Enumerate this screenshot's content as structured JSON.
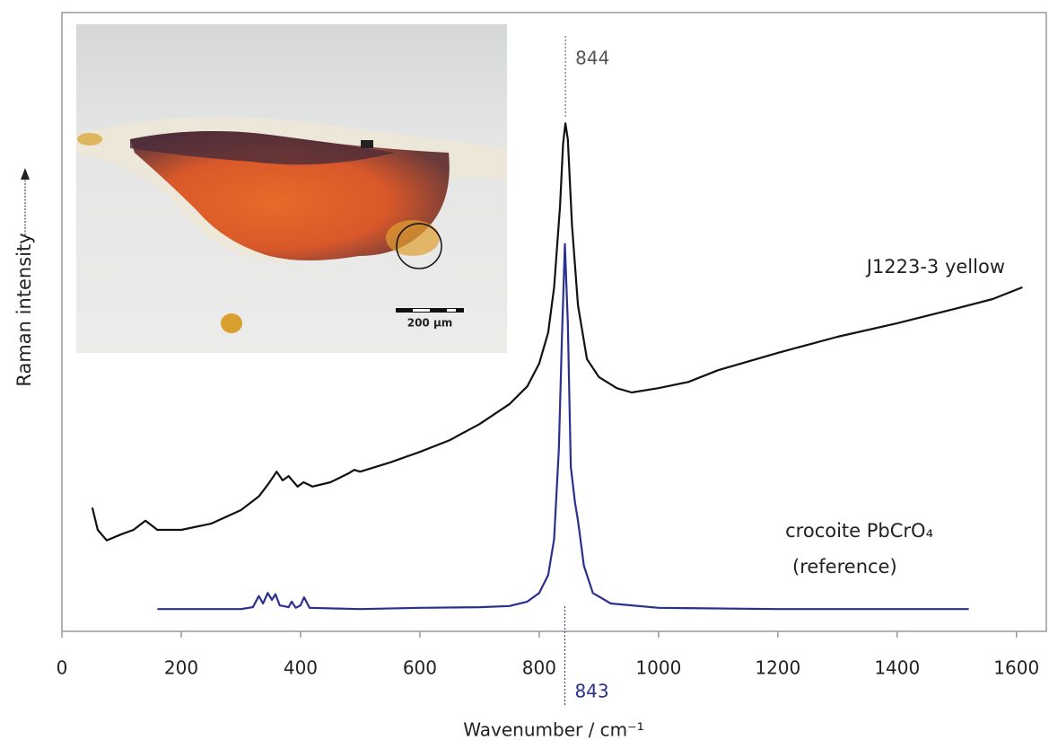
{
  "chart_data": {
    "type": "line",
    "x_label": "Wavenumber / cm⁻¹",
    "y_label": "Raman intensity",
    "xlim": [
      0,
      1650
    ],
    "ylim": [
      0,
      100
    ],
    "xticks": [
      0,
      200,
      400,
      600,
      800,
      1000,
      1200,
      1400,
      1600
    ],
    "inset_label": "200 µm",
    "annotations": [
      {
        "label": "844",
        "x": 844,
        "color": "#555555"
      },
      {
        "label": "843",
        "x": 843,
        "color": "#2b2f8f"
      }
    ],
    "series": [
      {
        "name": "J1223-3 yellow",
        "color": "#111111",
        "x": [
          51,
          60,
          75,
          100,
          120,
          140,
          160,
          200,
          250,
          300,
          330,
          345,
          360,
          370,
          380,
          395,
          405,
          420,
          450,
          480,
          490,
          500,
          550,
          600,
          650,
          700,
          750,
          780,
          800,
          815,
          825,
          835,
          840,
          844,
          848,
          855,
          865,
          880,
          900,
          930,
          955,
          1000,
          1050,
          1100,
          1200,
          1300,
          1400,
          1500,
          1560,
          1610
        ],
        "values": [
          20.0,
          16.4,
          14.7,
          15.7,
          16.4,
          17.9,
          16.4,
          16.4,
          17.4,
          19.6,
          21.8,
          23.7,
          25.8,
          24.4,
          25.1,
          23.4,
          24.1,
          23.4,
          24.1,
          25.5,
          26.1,
          25.8,
          27.3,
          29.0,
          30.9,
          33.5,
          36.7,
          39.6,
          43.3,
          48.3,
          55.6,
          68.7,
          78.8,
          82.1,
          79.5,
          65.7,
          52.7,
          44.0,
          41.1,
          39.3,
          38.6,
          39.3,
          40.3,
          42.2,
          45.0,
          47.6,
          49.8,
          52.2,
          53.7,
          55.6
        ]
      },
      {
        "name": "crocoite PbCrO₄",
        "label_note": "(reference)",
        "color": "#2b2f8f",
        "x": [
          160,
          300,
          320,
          330,
          337,
          345,
          352,
          358,
          365,
          380,
          385,
          392,
          400,
          406,
          415,
          500,
          600,
          700,
          750,
          780,
          800,
          815,
          825,
          833,
          838,
          843,
          848,
          853,
          860,
          865,
          875,
          890,
          920,
          1000,
          1200,
          1520
        ],
        "values": [
          3.6,
          3.6,
          3.9,
          5.7,
          4.5,
          6.2,
          5.1,
          6.0,
          4.2,
          3.9,
          4.8,
          3.8,
          4.2,
          5.5,
          3.8,
          3.6,
          3.8,
          3.9,
          4.1,
          4.8,
          6.2,
          9.1,
          14.9,
          29.5,
          46.9,
          62.6,
          49.8,
          26.6,
          20.8,
          17.9,
          10.6,
          6.2,
          4.5,
          3.8,
          3.6,
          3.6
        ]
      }
    ]
  }
}
